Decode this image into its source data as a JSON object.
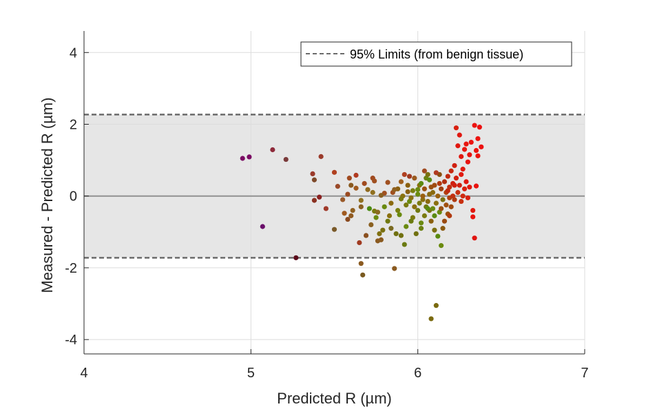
{
  "chart_data": {
    "type": "scatter",
    "title": "",
    "xlabel": "Predicted R (µm)",
    "ylabel": "Measured - Predicted R (µm)",
    "xlim": [
      4,
      7
    ],
    "ylim": [
      -4.4,
      4.6
    ],
    "x_ticks": [
      4,
      5,
      6,
      7
    ],
    "y_ticks": [
      -4,
      -2,
      0,
      2,
      4
    ],
    "x_tick_labels": [
      "4",
      "5",
      "6",
      "7"
    ],
    "y_tick_labels": [
      "-4",
      "-2",
      "0",
      "2",
      "4"
    ],
    "grid": true,
    "legend_position": "top-right",
    "limits": {
      "label": "95% Limits (from benign tissue)",
      "upper": 2.27,
      "lower": -1.72,
      "mean": 0,
      "band_color": "#e6e6e6",
      "line_color": "#6b6b6b"
    },
    "colors": {
      "low": "#6b0a5a",
      "mid": "#6e8e00",
      "high": "#e8140a"
    },
    "points": [
      [
        4.95,
        1.05,
        "#7a0a63"
      ],
      [
        4.99,
        1.09,
        "#7a0a63"
      ],
      [
        5.07,
        -0.85,
        "#6a0c6a"
      ],
      [
        5.13,
        1.29,
        "#8e2a3a"
      ],
      [
        5.21,
        1.02,
        "#7a3a3a"
      ],
      [
        5.27,
        -1.72,
        "#5a0a1a"
      ],
      [
        5.37,
        0.62,
        "#9a3a2a"
      ],
      [
        5.38,
        0.45,
        "#7e4a2a"
      ],
      [
        5.38,
        -0.12,
        "#8a3020"
      ],
      [
        5.41,
        -0.03,
        "#8a2020"
      ],
      [
        5.42,
        1.1,
        "#9a3a2a"
      ],
      [
        5.45,
        -0.35,
        "#a03a2a"
      ],
      [
        5.5,
        0.66,
        "#b04020"
      ],
      [
        5.5,
        -0.93,
        "#7a5a2a"
      ],
      [
        5.52,
        0.27,
        "#9a4a2a"
      ],
      [
        5.55,
        -0.1,
        "#9a5a2a"
      ],
      [
        5.56,
        -0.48,
        "#a05a20"
      ],
      [
        5.58,
        -0.65,
        "#8a4a20"
      ],
      [
        5.59,
        0.5,
        "#a04a20"
      ],
      [
        5.6,
        0.3,
        "#8a5a20"
      ],
      [
        5.61,
        -0.4,
        "#906020"
      ],
      [
        5.63,
        0.22,
        "#a05a20"
      ],
      [
        5.63,
        0.58,
        "#b03a20"
      ],
      [
        5.65,
        -1.3,
        "#a03a20"
      ],
      [
        5.66,
        -0.12,
        "#907020"
      ],
      [
        5.66,
        -1.88,
        "#8a5a20"
      ],
      [
        5.67,
        -2.2,
        "#7a5a20"
      ],
      [
        5.7,
        0.18,
        "#906a20"
      ],
      [
        5.71,
        -0.35,
        "#4a8a10"
      ],
      [
        5.72,
        -0.8,
        "#8a6020"
      ],
      [
        5.73,
        0.5,
        "#a04a20"
      ],
      [
        5.73,
        0.1,
        "#907020"
      ],
      [
        5.74,
        -0.42,
        "#7a7a10"
      ],
      [
        5.75,
        -0.6,
        "#6a8a10"
      ],
      [
        5.76,
        -0.45,
        "#8a6a20"
      ],
      [
        5.77,
        -1.05,
        "#807010"
      ],
      [
        5.78,
        -1.22,
        "#8a5a20"
      ],
      [
        5.79,
        -0.95,
        "#7a7010"
      ],
      [
        5.8,
        0.08,
        "#a05020"
      ],
      [
        5.8,
        -0.3,
        "#6a8a10"
      ],
      [
        5.82,
        -0.7,
        "#707810"
      ],
      [
        5.83,
        -0.55,
        "#8a7010"
      ],
      [
        5.84,
        -0.2,
        "#8a6a10"
      ],
      [
        5.85,
        0.1,
        "#a05020"
      ],
      [
        5.86,
        -2.02,
        "#8a5a20"
      ],
      [
        5.87,
        -1.05,
        "#707010"
      ],
      [
        5.88,
        -0.4,
        "#7a8010"
      ],
      [
        5.88,
        0.2,
        "#8a6010"
      ],
      [
        5.89,
        -0.52,
        "#6a8a10"
      ],
      [
        5.9,
        0.4,
        "#a06020"
      ],
      [
        5.9,
        -1.1,
        "#707010"
      ],
      [
        5.91,
        0.0,
        "#8a7010"
      ],
      [
        5.92,
        -1.35,
        "#6a7a10"
      ],
      [
        5.93,
        -0.85,
        "#6a8a10"
      ],
      [
        5.93,
        -0.25,
        "#7a7a10"
      ],
      [
        5.94,
        0.3,
        "#8a6010"
      ],
      [
        5.95,
        -0.15,
        "#6a8a10"
      ],
      [
        5.95,
        0.55,
        "#a03a20"
      ],
      [
        5.96,
        -0.05,
        "#8a7010"
      ],
      [
        5.97,
        -0.6,
        "#7a7a10"
      ],
      [
        5.97,
        0.15,
        "#7a8010"
      ],
      [
        5.98,
        -0.3,
        "#8a7010"
      ],
      [
        5.99,
        -1.05,
        "#707010"
      ],
      [
        6.0,
        0.05,
        "#6a8a10"
      ],
      [
        6.0,
        -0.4,
        "#707810"
      ],
      [
        6.01,
        0.3,
        "#8a7010"
      ],
      [
        6.01,
        -0.2,
        "#7a7a10"
      ],
      [
        6.02,
        -0.75,
        "#6a8a10"
      ],
      [
        6.02,
        0.35,
        "#5a8a10"
      ],
      [
        6.03,
        -0.1,
        "#8a7010"
      ],
      [
        6.03,
        0.0,
        "#9a6010"
      ],
      [
        6.04,
        -0.55,
        "#7a7a10"
      ],
      [
        6.04,
        0.2,
        "#9a5010"
      ],
      [
        6.05,
        -0.3,
        "#707810"
      ],
      [
        6.05,
        0.5,
        "#6a8010"
      ],
      [
        6.06,
        0.6,
        "#7a7010"
      ],
      [
        6.06,
        -0.15,
        "#8a6a10"
      ],
      [
        6.07,
        0.45,
        "#5a8a10"
      ],
      [
        6.07,
        -0.4,
        "#7a7010"
      ],
      [
        6.08,
        0.25,
        "#9a5010"
      ],
      [
        6.08,
        -0.7,
        "#8a6010"
      ],
      [
        6.08,
        -3.42,
        "#7a6a10"
      ],
      [
        6.09,
        0.1,
        "#8a6a10"
      ],
      [
        6.09,
        -0.35,
        "#6a8a10"
      ],
      [
        6.1,
        -0.95,
        "#7a7010"
      ],
      [
        6.1,
        -0.55,
        "#5a8a10"
      ],
      [
        6.1,
        0.3,
        "#a04a10"
      ],
      [
        6.11,
        -3.05,
        "#7a6a10"
      ],
      [
        6.11,
        -0.2,
        "#8a7010"
      ],
      [
        6.12,
        -1.12,
        "#5a8a10"
      ],
      [
        6.12,
        0.0,
        "#9a6010"
      ],
      [
        6.13,
        -0.45,
        "#6a8a10"
      ],
      [
        6.13,
        0.6,
        "#8a5010"
      ],
      [
        6.14,
        -1.38,
        "#6a8a10"
      ],
      [
        6.14,
        0.2,
        "#a04010"
      ],
      [
        6.15,
        -0.9,
        "#8a5a10"
      ],
      [
        6.15,
        -0.1,
        "#7a7010"
      ],
      [
        6.16,
        0.4,
        "#b03010"
      ],
      [
        6.16,
        -0.7,
        "#9a4a10"
      ],
      [
        6.17,
        0.1,
        "#b04010"
      ],
      [
        6.17,
        -0.25,
        "#a05010"
      ],
      [
        6.18,
        0.55,
        "#c02a10"
      ],
      [
        6.18,
        -0.5,
        "#9a5010"
      ],
      [
        6.19,
        0.25,
        "#c03010"
      ],
      [
        6.19,
        -0.05,
        "#b04010"
      ],
      [
        6.2,
        0.7,
        "#c82810"
      ],
      [
        6.2,
        -0.3,
        "#a04a10"
      ],
      [
        6.21,
        0.0,
        "#c03010"
      ],
      [
        6.21,
        0.35,
        "#d02010"
      ],
      [
        6.22,
        0.85,
        "#d02010"
      ],
      [
        6.22,
        -0.1,
        "#b03a10"
      ],
      [
        6.23,
        1.9,
        "#d82010"
      ],
      [
        6.23,
        0.5,
        "#d02010"
      ],
      [
        6.24,
        0.1,
        "#c83010"
      ],
      [
        6.24,
        1.4,
        "#e01810"
      ],
      [
        6.25,
        1.7,
        "#e01810"
      ],
      [
        6.25,
        0.3,
        "#d02010"
      ],
      [
        6.26,
        -0.15,
        "#c83010"
      ],
      [
        6.26,
        1.1,
        "#e01810"
      ],
      [
        6.27,
        0.0,
        "#d02a10"
      ],
      [
        6.27,
        0.75,
        "#e01a10"
      ],
      [
        6.28,
        1.3,
        "#e81810"
      ],
      [
        6.28,
        0.2,
        "#d82010"
      ],
      [
        6.29,
        1.45,
        "#e81810"
      ],
      [
        6.29,
        0.4,
        "#e01810"
      ],
      [
        6.3,
        0.95,
        "#e81410"
      ],
      [
        6.3,
        -0.05,
        "#d82010"
      ],
      [
        6.31,
        1.15,
        "#e81410"
      ],
      [
        6.31,
        0.25,
        "#e01a10"
      ],
      [
        6.32,
        1.5,
        "#ec1410"
      ],
      [
        6.33,
        -0.4,
        "#e01a10"
      ],
      [
        6.33,
        -0.58,
        "#e81410"
      ],
      [
        6.34,
        -1.17,
        "#e01410"
      ],
      [
        6.34,
        1.97,
        "#ec1410"
      ],
      [
        6.35,
        1.27,
        "#ec1410"
      ],
      [
        6.35,
        0.28,
        "#e81410"
      ],
      [
        6.36,
        1.12,
        "#ec1410"
      ],
      [
        6.36,
        1.6,
        "#ec1410"
      ],
      [
        6.37,
        1.92,
        "#ec1010"
      ],
      [
        6.38,
        1.37,
        "#ec1010"
      ],
      [
        5.6,
        -0.55,
        "#905a20"
      ],
      [
        5.68,
        0.35,
        "#a04a20"
      ],
      [
        5.78,
        0.02,
        "#8a6020"
      ],
      [
        5.82,
        0.38,
        "#a05020"
      ],
      [
        5.92,
        0.6,
        "#b04020"
      ],
      [
        5.98,
        0.5,
        "#9a5a20"
      ],
      [
        6.04,
        0.7,
        "#a04a20"
      ],
      [
        6.11,
        0.65,
        "#b03a20"
      ],
      [
        5.69,
        -1.1,
        "#8a5020"
      ],
      [
        5.76,
        -1.25,
        "#8a5a20"
      ],
      [
        5.84,
        -0.9,
        "#7a6a20"
      ],
      [
        5.96,
        -0.7,
        "#6a7a10"
      ],
      [
        6.02,
        -0.9,
        "#6a8010"
      ],
      [
        6.06,
        -0.35,
        "#5a8a10"
      ],
      [
        6.14,
        -0.35,
        "#9a5010"
      ],
      [
        6.19,
        -0.55,
        "#b03a10"
      ],
      [
        5.58,
        0.05,
        "#9a4a20"
      ],
      [
        5.66,
        -0.3,
        "#8a6020"
      ],
      [
        5.74,
        0.42,
        "#a05020"
      ],
      [
        5.86,
        0.18,
        "#906020"
      ],
      [
        5.9,
        -0.08,
        "#7a7a10"
      ],
      [
        5.94,
        0.12,
        "#8a6010"
      ],
      [
        6.0,
        0.18,
        "#6a8a10"
      ],
      [
        6.07,
        0.05,
        "#8a6a10"
      ],
      [
        6.13,
        0.35,
        "#b03a10"
      ],
      [
        6.18,
        0.15,
        "#c02a10"
      ],
      [
        6.22,
        0.3,
        "#d02010"
      ],
      [
        6.26,
        0.6,
        "#e01a10"
      ]
    ]
  }
}
